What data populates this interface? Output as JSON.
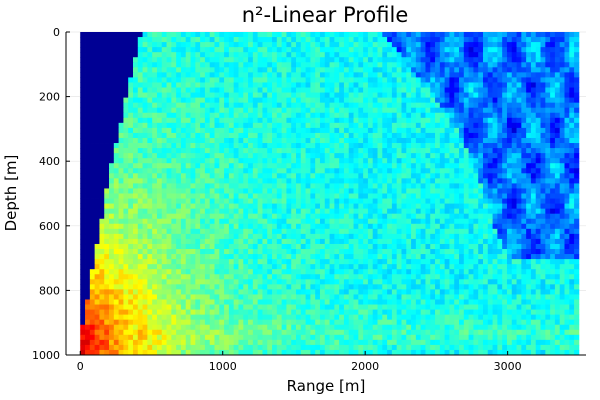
{
  "chart_data": {
    "type": "heatmap",
    "title": "n²-Linear Profile",
    "xlabel": "Range [m]",
    "ylabel": "Depth [m]",
    "xlim": [
      -100,
      3550
    ],
    "ylim": [
      1000,
      0
    ],
    "y_reversed": true,
    "x_ticks": [
      0,
      1000,
      2000,
      3000
    ],
    "x_tick_labels": [
      "0",
      "1000",
      "2000",
      "3000"
    ],
    "y_ticks": [
      0,
      200,
      400,
      600,
      800,
      1000
    ],
    "y_tick_labels": [
      "0",
      "200",
      "400",
      "600",
      "800",
      "1000"
    ],
    "grid": true,
    "legend": "none",
    "colormap": "jet",
    "colors": {
      "jet_low": "#00007f",
      "jet_blue": "#0000ff",
      "jet_cyan": "#00ffff",
      "jet_yellow": "#ffff00",
      "jet_red": "#ff0000",
      "jet_high": "#7f0000"
    },
    "data_extent": {
      "x": [
        0,
        3500
      ],
      "y": [
        0,
        1000
      ]
    },
    "source": {
      "x": 0,
      "y": 970,
      "note": "point source near the bottom-left; intensity highest (red) around it"
    },
    "shadow_zone": {
      "description": "low-intensity (dark blue) wedge at top-left bounded by ray fan",
      "boundary_points": [
        [
          0,
          950
        ],
        [
          100,
          700
        ],
        [
          200,
          450
        ],
        [
          300,
          250
        ],
        [
          400,
          50
        ],
        [
          430,
          0
        ]
      ]
    },
    "interference_region": {
      "description": "blue patterned region at upper right",
      "boundary_points": [
        [
          2100,
          0
        ],
        [
          2400,
          150
        ],
        [
          2650,
          300
        ],
        [
          2800,
          450
        ],
        [
          2900,
          600
        ],
        [
          3000,
          700
        ],
        [
          3500,
          700
        ]
      ]
    }
  }
}
